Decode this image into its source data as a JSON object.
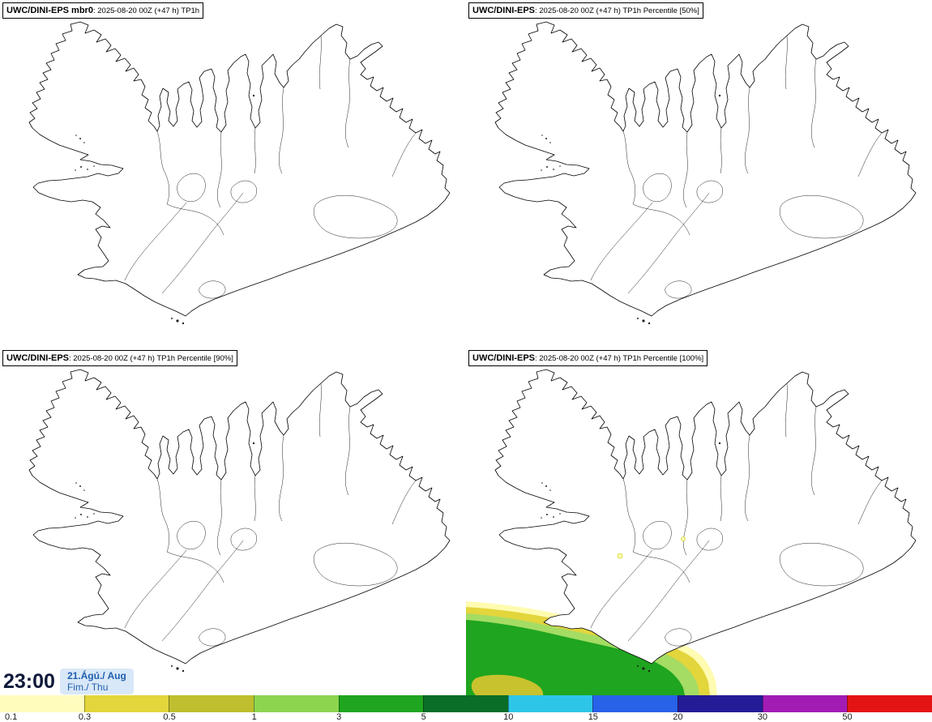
{
  "panels": [
    {
      "title_bold": "UWC/DINI-EPS mbr0",
      "title_rest": ": 2025-08-20 00Z (+47 h) TP1h"
    },
    {
      "title_bold": "UWC/DINI-EPS",
      "title_rest": ": 2025-08-20 00Z (+47 h) TP1h Percentile [50%]"
    },
    {
      "title_bold": "UWC/DINI-EPS",
      "title_rest": ": 2025-08-20 00Z (+47 h) TP1h Percentile [90%]"
    },
    {
      "title_bold": "UWC/DINI-EPS",
      "title_rest": ": 2025-08-20 00Z (+47 h) TP1h Percentile [100%]"
    }
  ],
  "clock": {
    "time": "23:00",
    "date": "21.Ágú./ Aug",
    "day": "Fim./ Thu"
  },
  "colorbar": {
    "labels": [
      "0.1",
      "0.3",
      "0.5",
      "1",
      "3",
      "5",
      "10",
      "15",
      "20",
      "30",
      "50"
    ],
    "colors": [
      "#FFFCBE",
      "#E3D53C",
      "#BEBE2E",
      "#8ED44F",
      "#1FA51F",
      "#0A6E28",
      "#2EC6E8",
      "#2762E8",
      "#241C96",
      "#A21CB4",
      "#E41414"
    ],
    "outline_color": "#000000"
  }
}
